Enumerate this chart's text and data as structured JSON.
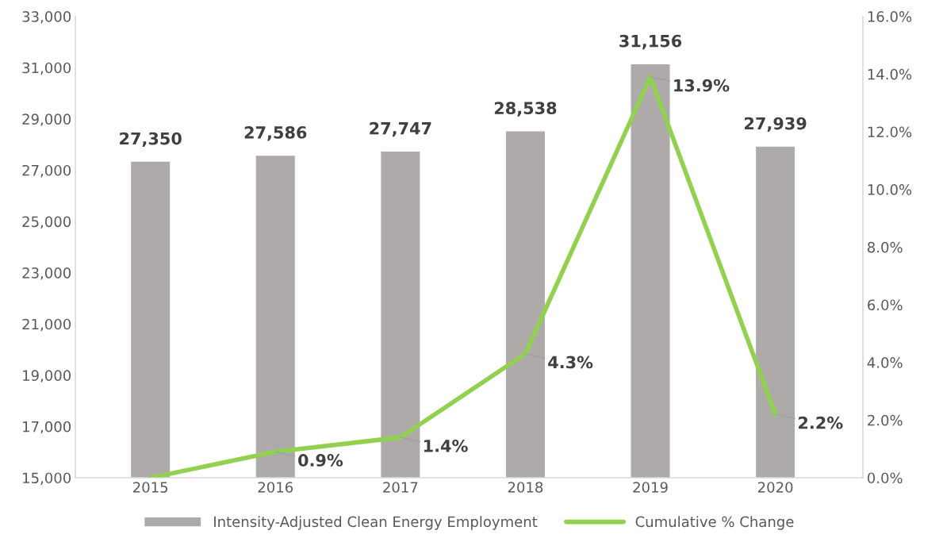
{
  "chart_data": {
    "type": "bar",
    "categories": [
      "2015",
      "2016",
      "2017",
      "2018",
      "2019",
      "2020"
    ],
    "series": [
      {
        "name": "Intensity-Adjusted Clean Energy Employment",
        "color": "#aeaaaa",
        "values": [
          27350,
          27586,
          27747,
          28538,
          31156,
          27939
        ],
        "value_labels": [
          "27,350",
          "27,586",
          "27,747",
          "28,538",
          "31,156",
          "27,939"
        ]
      },
      {
        "name": "Cumulative % Change",
        "type": "line",
        "axis": "y2",
        "color": "#92d050",
        "values": [
          0.0,
          0.9,
          1.4,
          4.3,
          13.9,
          2.2
        ],
        "value_labels": [
          null,
          "0.9%",
          "1.4%",
          "4.3%",
          "13.9%",
          "2.2%"
        ]
      }
    ],
    "ylim": [
      15000,
      33000
    ],
    "yticks": [
      {
        "value": 15000,
        "label": "15,000"
      },
      {
        "value": 17000,
        "label": "17,000"
      },
      {
        "value": 19000,
        "label": "19,000"
      },
      {
        "value": 21000,
        "label": "21,000"
      },
      {
        "value": 23000,
        "label": "23,000"
      },
      {
        "value": 25000,
        "label": "25,000"
      },
      {
        "value": 27000,
        "label": "27,000"
      },
      {
        "value": 29000,
        "label": "29,000"
      },
      {
        "value": 31000,
        "label": "31,000"
      },
      {
        "value": 33000,
        "label": "33,000"
      }
    ],
    "y2lim": [
      0,
      16
    ],
    "y2ticks": [
      {
        "value": 0,
        "label": "0.0%"
      },
      {
        "value": 2,
        "label": "2.0%"
      },
      {
        "value": 4,
        "label": "4.0%"
      },
      {
        "value": 6,
        "label": "6.0%"
      },
      {
        "value": 8,
        "label": "8.0%"
      },
      {
        "value": 10,
        "label": "10.0%"
      },
      {
        "value": 12,
        "label": "12.0%"
      },
      {
        "value": 14,
        "label": "14.0%"
      },
      {
        "value": 16,
        "label": "16.0%"
      }
    ],
    "grid": false,
    "legend": "bottom"
  }
}
